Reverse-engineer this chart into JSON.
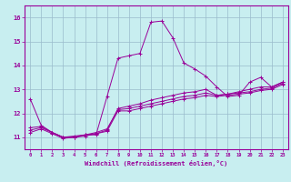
{
  "xlabel": "Windchill (Refroidissement éolien,°C)",
  "background_color": "#c8eef0",
  "line_color": "#990099",
  "grid_color": "#99bbcc",
  "xlim": [
    -0.5,
    23.5
  ],
  "ylim": [
    10.5,
    16.5
  ],
  "xticks": [
    0,
    1,
    2,
    3,
    4,
    5,
    6,
    7,
    8,
    9,
    10,
    11,
    12,
    13,
    14,
    15,
    16,
    17,
    18,
    19,
    20,
    21,
    22,
    23
  ],
  "yticks": [
    11,
    12,
    13,
    14,
    15,
    16
  ],
  "series": [
    [
      12.6,
      11.5,
      11.2,
      11.0,
      11.0,
      11.1,
      11.1,
      12.7,
      14.3,
      14.4,
      14.5,
      15.8,
      15.85,
      15.15,
      14.1,
      13.85,
      13.55,
      13.1,
      12.7,
      12.75,
      13.3,
      13.5,
      13.1,
      13.3
    ],
    [
      11.4,
      11.45,
      11.2,
      11.0,
      11.0,
      11.1,
      11.15,
      11.3,
      12.2,
      12.3,
      12.4,
      12.55,
      12.65,
      12.75,
      12.85,
      12.9,
      13.0,
      12.75,
      12.8,
      12.9,
      13.0,
      13.1,
      13.1,
      13.3
    ],
    [
      11.3,
      11.4,
      11.2,
      11.0,
      11.05,
      11.1,
      11.2,
      11.35,
      12.15,
      12.2,
      12.3,
      12.4,
      12.5,
      12.6,
      12.7,
      12.75,
      12.85,
      12.75,
      12.8,
      12.85,
      12.9,
      13.0,
      13.05,
      13.25
    ],
    [
      11.2,
      11.35,
      11.15,
      10.95,
      11.0,
      11.05,
      11.15,
      11.25,
      12.1,
      12.1,
      12.2,
      12.3,
      12.4,
      12.5,
      12.6,
      12.65,
      12.75,
      12.7,
      12.75,
      12.8,
      12.85,
      12.95,
      13.0,
      13.2
    ]
  ]
}
